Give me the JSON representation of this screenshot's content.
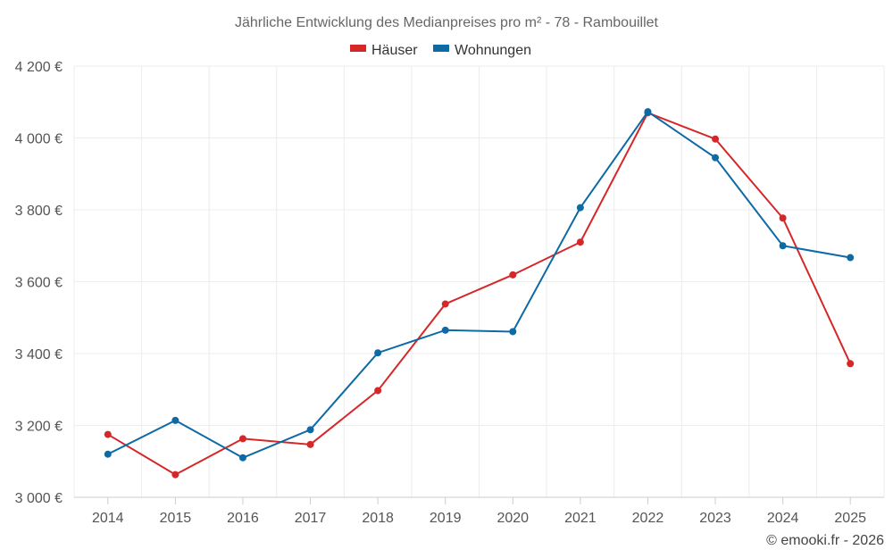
{
  "chart_data": {
    "type": "line",
    "title": "Jährliche Entwicklung des Medianpreises pro m² - 78 - Rambouillet",
    "categories": [
      "2014",
      "2015",
      "2016",
      "2017",
      "2018",
      "2019",
      "2020",
      "2021",
      "2022",
      "2023",
      "2024",
      "2025"
    ],
    "y_ticks": [
      "3 000 €",
      "3 200 €",
      "3 400 €",
      "3 600 €",
      "3 800 €",
      "4 000 €",
      "4 200 €"
    ],
    "ylim": [
      3000,
      4200
    ],
    "grid": true,
    "legend_position": "top-center",
    "series": [
      {
        "name": "Häuser",
        "color": "#d62728",
        "values": [
          3175,
          3063,
          3163,
          3147,
          3297,
          3538,
          3619,
          3710,
          4070,
          3997,
          3777,
          3372
        ]
      },
      {
        "name": "Wohnungen",
        "color": "#0e6aa5",
        "values": [
          3120,
          3214,
          3110,
          3188,
          3402,
          3465,
          3461,
          3806,
          4073,
          3945,
          3700,
          3667
        ]
      }
    ],
    "credit": "© emooki.fr - 2026"
  }
}
